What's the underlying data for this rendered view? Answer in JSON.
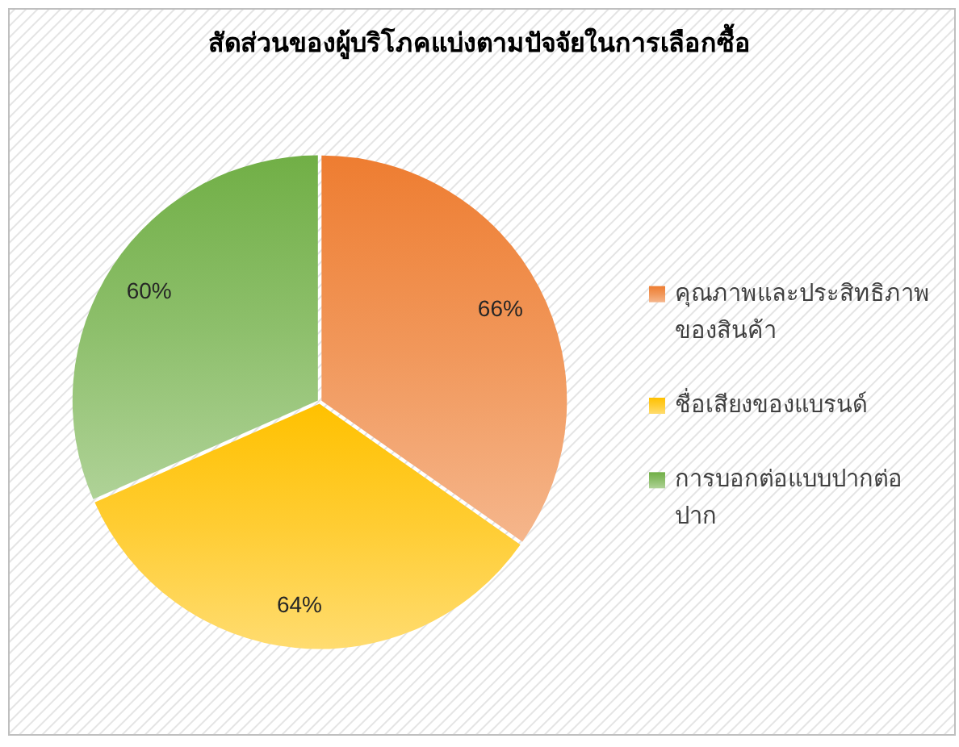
{
  "chart_data": {
    "type": "pie",
    "title": "สัดส่วนของผู้บริโภคแบ่งตามปัจจัยในการเลือกซื้อ",
    "categories": [
      "คุณภาพและประสิทธิภาพของสินค้า",
      "ชื่อเสียงของแบรนด์",
      "การบอกต่อแบบปากต่อปาก"
    ],
    "values": [
      66,
      64,
      60
    ],
    "value_labels": [
      "66%",
      "64%",
      "60%"
    ],
    "colors": [
      "#f1975a",
      "#ffcd33",
      "#8dbf6b"
    ],
    "legend": "right"
  }
}
